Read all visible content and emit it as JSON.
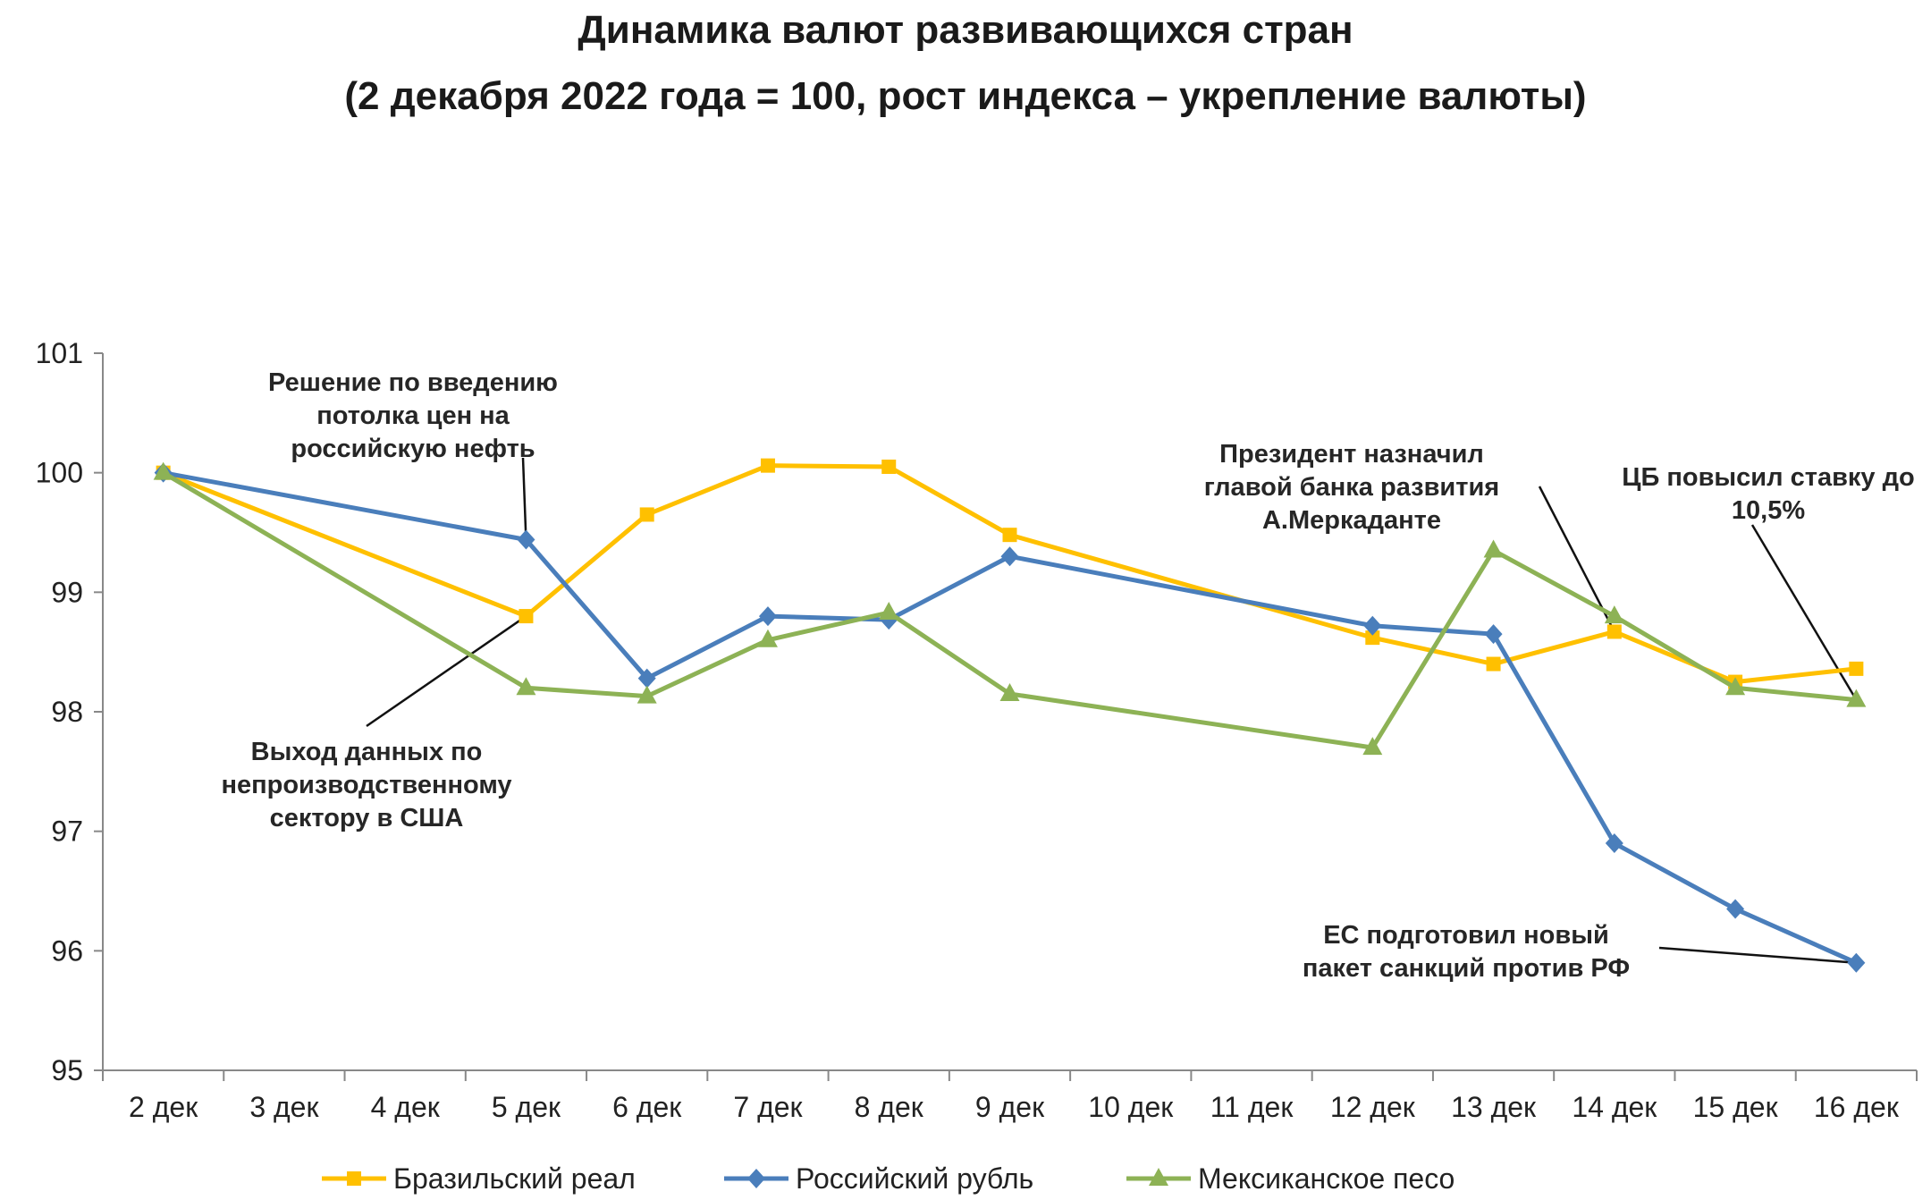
{
  "chart_data": {
    "type": "line",
    "title": "Динамика валют развивающихся стран",
    "subtitle": "(2 декабря 2022 года = 100, рост индекса – укрепление валюты)",
    "xlabel": "",
    "ylabel": "",
    "categories": [
      "2 дек",
      "3 дек",
      "4 дек",
      "5 дек",
      "6 дек",
      "7 дек",
      "8 дек",
      "9 дек",
      "10 дек",
      "11 дек",
      "12 дек",
      "13 дек",
      "14 дек",
      "15 дек",
      "16 дек"
    ],
    "ylim": [
      95,
      101
    ],
    "yticks": [
      "95",
      "96",
      "97",
      "98",
      "99",
      "100",
      "101"
    ],
    "grid": false,
    "legend_position": "bottom",
    "series": [
      {
        "name": "Бразильский реал",
        "color": "#FFC000",
        "marker": "square",
        "values": [
          100,
          null,
          null,
          98.8,
          99.65,
          100.06,
          100.05,
          99.48,
          null,
          null,
          98.62,
          98.4,
          98.67,
          98.25,
          98.36
        ]
      },
      {
        "name": "Российский рубль",
        "color": "#4A7EBB",
        "marker": "diamond",
        "values": [
          100,
          null,
          null,
          99.44,
          98.28,
          98.8,
          98.77,
          99.3,
          null,
          null,
          98.72,
          98.65,
          96.9,
          96.35,
          95.9
        ]
      },
      {
        "name": "Мексиканское песо",
        "color": "#8DB255",
        "marker": "triangle",
        "values": [
          100,
          null,
          null,
          98.2,
          98.13,
          98.6,
          98.83,
          98.15,
          null,
          null,
          97.7,
          99.35,
          98.8,
          98.2,
          98.1
        ]
      }
    ],
    "annotations": [
      {
        "lines": [
          "Решение по введению",
          "потолка цен на",
          "российскую нефть"
        ],
        "target": {
          "category": "5 дек",
          "value": 99.44
        }
      },
      {
        "lines": [
          "Выход данных по",
          "непроизводственному",
          "сектору в США"
        ],
        "target": {
          "category": "5 дек",
          "value": 98.8
        }
      },
      {
        "lines": [
          "Президент назначил",
          "главой банка развития",
          "А.Меркаданте"
        ],
        "target": {
          "category": "14 дек",
          "value": 98.67
        }
      },
      {
        "lines": [
          "ЦБ повысил ставку до",
          "10,5%"
        ],
        "target": {
          "category": "16 дек",
          "value": 98.1
        }
      },
      {
        "lines": [
          "ЕС подготовил новый",
          "пакет санкций против РФ"
        ],
        "target": {
          "category": "16 дек",
          "value": 95.9
        }
      }
    ]
  }
}
